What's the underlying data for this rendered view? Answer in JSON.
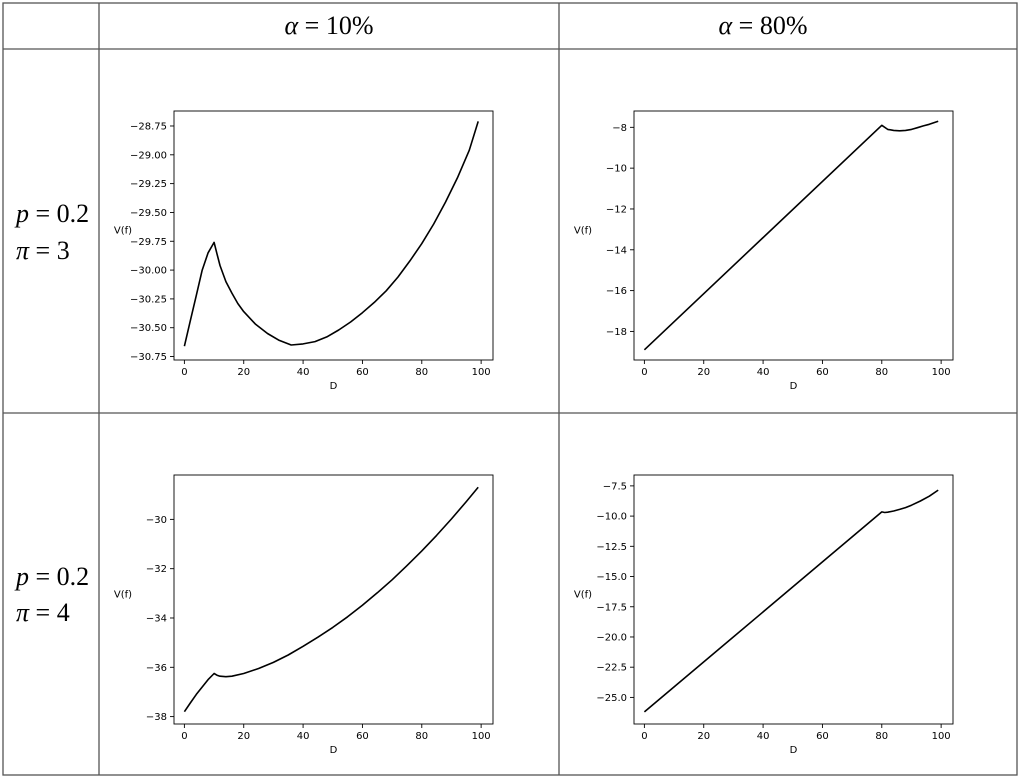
{
  "table": {
    "columns": [
      {
        "alpha_symbol": "α",
        "eq": " = ",
        "value": "10%"
      },
      {
        "alpha_symbol": "α",
        "eq": " = ",
        "value": "80%"
      }
    ],
    "rows": [
      {
        "p_label": "p",
        "p_value": " = 0.2",
        "pi_label": "π",
        "pi_value": " = 3"
      },
      {
        "p_label": "p",
        "p_value": " = 0.2",
        "pi_label": "π",
        "pi_value": " = 4"
      }
    ]
  },
  "chart_data": [
    {
      "type": "line",
      "xlabel": "D",
      "ylabel": "V(f)",
      "xlim": [
        -3.5,
        104
      ],
      "ylim": [
        -30.78,
        -28.62
      ],
      "xticks": [
        0,
        20,
        40,
        60,
        80,
        100
      ],
      "yticks": [
        -30.75,
        -30.5,
        -30.25,
        -30.0,
        -29.75,
        -29.5,
        -29.25,
        -29.0,
        -28.75
      ],
      "ytick_labels": [
        "−30.75",
        "−30.50",
        "−30.25",
        "−30.00",
        "−29.75",
        "−29.50",
        "−29.25",
        "−29.00",
        "−28.75"
      ],
      "series": [
        {
          "x": [
            0,
            2,
            4,
            6,
            8,
            10,
            11,
            12,
            14,
            16,
            18,
            20,
            24,
            28,
            32,
            36,
            40,
            44,
            48,
            52,
            56,
            60,
            64,
            68,
            72,
            76,
            80,
            84,
            88,
            92,
            96,
            99
          ],
          "y": [
            -30.66,
            -30.44,
            -30.22,
            -30.0,
            -29.85,
            -29.76,
            -29.86,
            -29.96,
            -30.1,
            -30.2,
            -30.29,
            -30.36,
            -30.47,
            -30.55,
            -30.61,
            -30.65,
            -30.64,
            -30.62,
            -30.58,
            -30.52,
            -30.45,
            -30.37,
            -30.28,
            -30.18,
            -30.06,
            -29.92,
            -29.77,
            -29.6,
            -29.41,
            -29.2,
            -28.96,
            -28.71
          ]
        }
      ]
    },
    {
      "type": "line",
      "xlabel": "D",
      "ylabel": "V(f)",
      "xlim": [
        -3.5,
        104
      ],
      "ylim": [
        -19.4,
        -7.2
      ],
      "xticks": [
        0,
        20,
        40,
        60,
        80,
        100
      ],
      "yticks": [
        -18,
        -16,
        -14,
        -12,
        -10,
        -8
      ],
      "ytick_labels": [
        "−18",
        "−16",
        "−14",
        "−12",
        "−10",
        "−8"
      ],
      "series": [
        {
          "x": [
            0,
            80,
            82,
            84,
            86,
            88,
            90,
            92,
            94,
            96,
            99
          ],
          "y": [
            -18.9,
            -7.9,
            -8.1,
            -8.15,
            -8.17,
            -8.15,
            -8.1,
            -8.02,
            -7.93,
            -7.85,
            -7.7
          ]
        }
      ]
    },
    {
      "type": "line",
      "xlabel": "D",
      "ylabel": "V(f)",
      "xlim": [
        -3.5,
        104
      ],
      "ylim": [
        -38.3,
        -28.2
      ],
      "xticks": [
        0,
        20,
        40,
        60,
        80,
        100
      ],
      "yticks": [
        -38,
        -36,
        -34,
        -32,
        -30
      ],
      "ytick_labels": [
        "−38",
        "−36",
        "−34",
        "−32",
        "−30"
      ],
      "series": [
        {
          "x": [
            0,
            2,
            4,
            6,
            8,
            10,
            11,
            12,
            14,
            16,
            20,
            25,
            30,
            35,
            40,
            45,
            50,
            55,
            60,
            65,
            70,
            75,
            80,
            85,
            90,
            95,
            99
          ],
          "y": [
            -37.8,
            -37.45,
            -37.1,
            -36.8,
            -36.5,
            -36.25,
            -36.32,
            -36.36,
            -36.38,
            -36.36,
            -36.25,
            -36.05,
            -35.8,
            -35.5,
            -35.15,
            -34.78,
            -34.38,
            -33.95,
            -33.48,
            -32.98,
            -32.45,
            -31.88,
            -31.28,
            -30.65,
            -29.98,
            -29.28,
            -28.7
          ]
        }
      ]
    },
    {
      "type": "line",
      "xlabel": "D",
      "ylabel": "V(f)",
      "xlim": [
        -3.5,
        104
      ],
      "ylim": [
        -27.2,
        -6.6
      ],
      "xticks": [
        0,
        20,
        40,
        60,
        80,
        100
      ],
      "yticks": [
        -25.0,
        -22.5,
        -20.0,
        -17.5,
        -15.0,
        -12.5,
        -10.0,
        -7.5
      ],
      "ytick_labels": [
        "−25.0",
        "−22.5",
        "−20.0",
        "−17.5",
        "−15.0",
        "−12.5",
        "−10.0",
        "−7.5"
      ],
      "series": [
        {
          "x": [
            0,
            80,
            81,
            82,
            84,
            86,
            88,
            90,
            93,
            96,
            99
          ],
          "y": [
            -26.2,
            -9.65,
            -9.7,
            -9.68,
            -9.58,
            -9.45,
            -9.3,
            -9.1,
            -8.75,
            -8.35,
            -7.85
          ]
        }
      ]
    }
  ]
}
